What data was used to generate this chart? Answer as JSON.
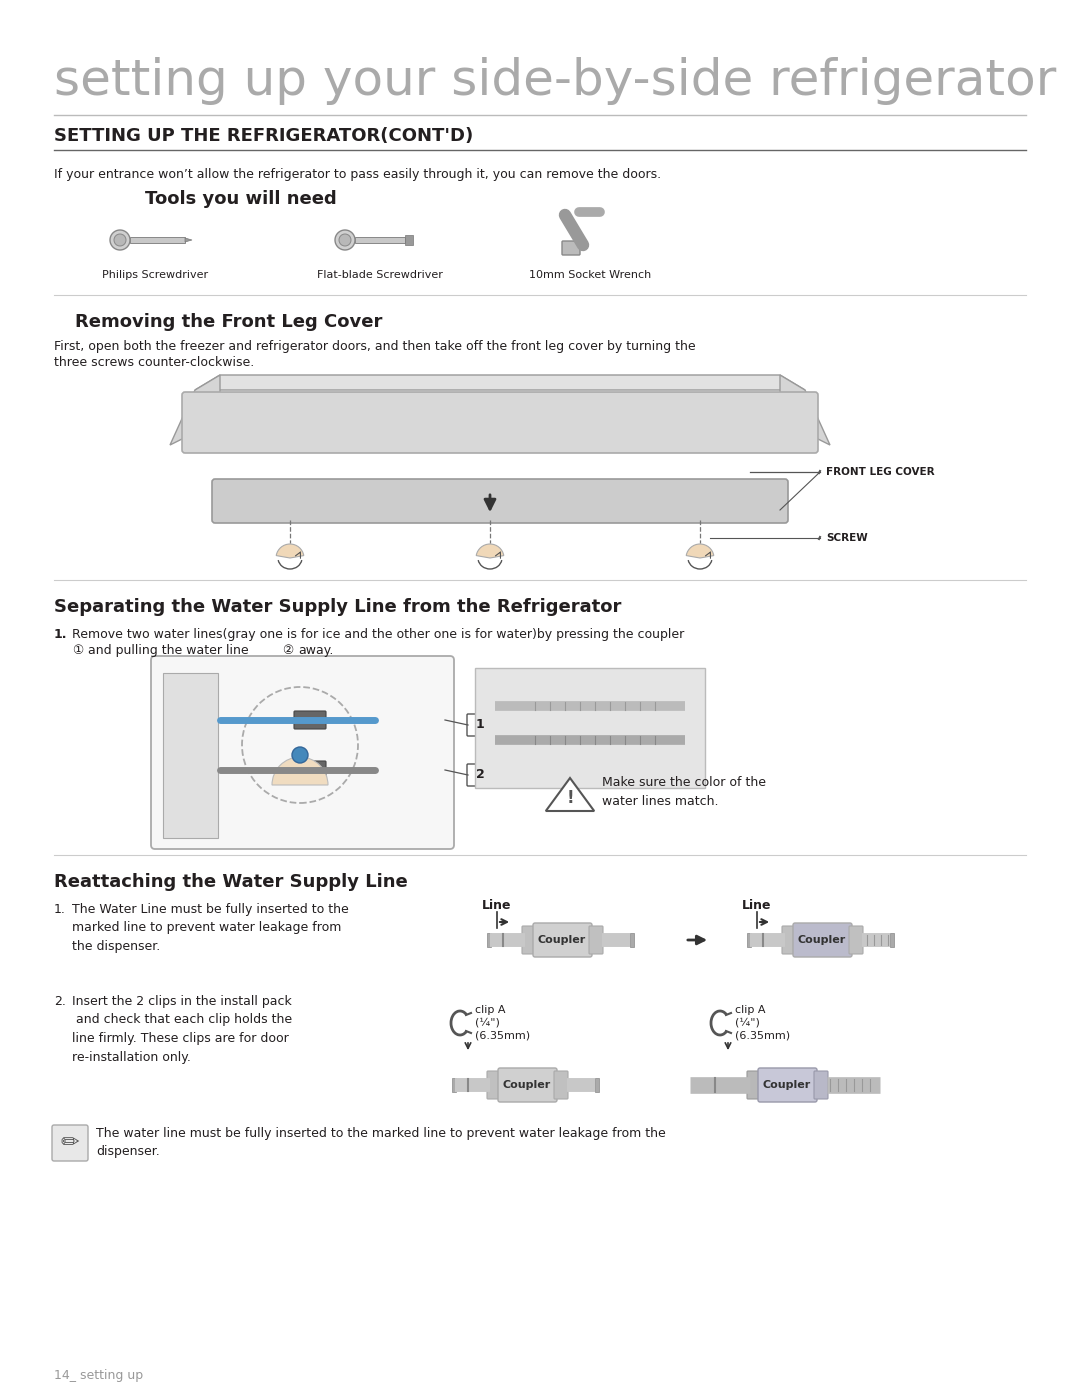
{
  "page_title": "setting up your side-by-side refrigerator",
  "section_title": "SETTING UP THE REFRIGERATOR(CONT'D)",
  "intro_text": "If your entrance won’t allow the refrigerator to pass easily through it, you can remove the doors.",
  "tools_title": "Tools you will need",
  "tools": [
    "Philips Screwdriver",
    "Flat-blade Screwdriver",
    "10mm Socket Wrench"
  ],
  "section2_title": "Removing the Front Leg Cover",
  "section2_body1": "First, open both the freezer and refrigerator doors, and then take off the front leg cover by turning the",
  "section2_body2": "three screws counter-clockwise.",
  "front_leg_label": "FRONT LEG COVER",
  "screw_label": "SCREW",
  "section3_title": "Separating the Water Supply Line from the Refrigerator",
  "section3_item1a": "Remove two water lines(gray one is for ice and the other one is for water)by pressing the coupler",
  "section3_item1b": " and pulling the water line  away.",
  "caution_text": "Make sure the color of the\nwater lines match.",
  "section4_title": "Reattaching the Water Supply Line",
  "section4_item1": "The Water Line must be fully inserted to the\nmarked line to prevent water leakage from\nthe dispenser.",
  "section4_item2": "Insert the 2 clips in the install pack\n and check that each clip holds the\nline firmly. These clips are for door\nre-installation only.",
  "clip_label": "clip A\n(¼\")\n(6.35mm)",
  "coupler_label": "Coupler",
  "line_label": "Line",
  "note_text": "The water line must be fully inserted to the marked line to prevent water leakage from the\ndispenser.",
  "footer_text": "14_ setting up",
  "bg_color": "#ffffff",
  "text_color": "#231f20",
  "title_color": "#aaaaaa",
  "section_bg": "#f5f5f5"
}
